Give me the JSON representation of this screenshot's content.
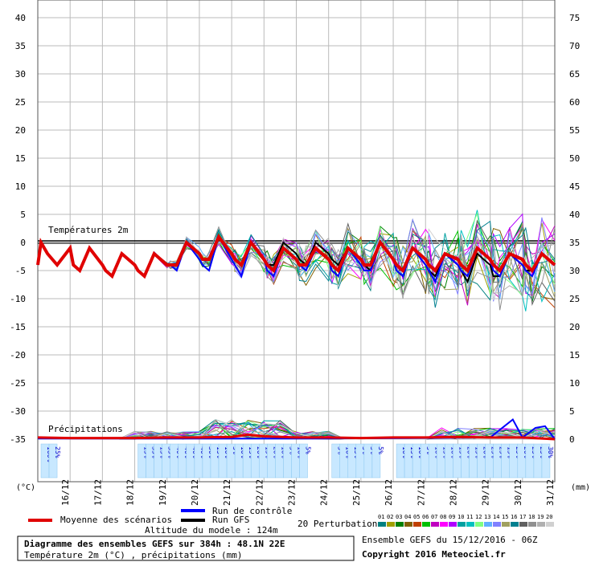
{
  "chart_data": {
    "type": "line",
    "title": "Diagramme des ensembles GEFS sur 384h : 48.1N 22E",
    "subtitle": "Température 2m (°C) , précipitations (mm)",
    "altitude": "Altitude du modele : 124m",
    "run_info": "Ensemble GEFS du 15/12/2016 - 06Z",
    "copyright": "Copyright 2016 Meteociel.fr",
    "left_unit": "(°C)",
    "right_unit": "(mm)",
    "temp_section_label": "Températures 2m",
    "precip_section_label": "Précipitations",
    "x_labels": [
      "16/12",
      "17/12",
      "18/12",
      "19/12",
      "20/12",
      "21/12",
      "22/12",
      "23/12",
      "24/12",
      "25/12",
      "26/12",
      "27/12",
      "28/12",
      "29/12",
      "30/12",
      "31/12"
    ],
    "left_ticks": [
      40,
      35,
      30,
      25,
      20,
      15,
      10,
      5,
      0,
      -5,
      -10,
      -15,
      -20,
      -25,
      -30,
      -35
    ],
    "right_ticks": [
      75,
      70,
      65,
      60,
      55,
      50,
      45,
      40,
      35,
      30,
      25,
      20,
      15,
      10,
      5,
      0
    ],
    "ylim_temp": [
      -35,
      40
    ],
    "temp_time": [
      0,
      0.1,
      0.3,
      0.6,
      1,
      1.1,
      1.3,
      1.6,
      2,
      2.1,
      2.3,
      2.6,
      3,
      3.1,
      3.3,
      3.6,
      4,
      4.1,
      4.3,
      4.6,
      5,
      5.1,
      5.3,
      5.6,
      6,
      6.1,
      6.3,
      6.6,
      7,
      7.1,
      7.3,
      7.6,
      8,
      8.1,
      8.3,
      8.6,
      9,
      9.1,
      9.3,
      9.6,
      10,
      10.1,
      10.3,
      10.6,
      11,
      11.1,
      11.3,
      11.6,
      12,
      12.1,
      12.3,
      12.6,
      13,
      13.1,
      13.3,
      13.6,
      14,
      14.1,
      14.3,
      14.6,
      15,
      15.1,
      15.3,
      15.6,
      16
    ],
    "series": [
      {
        "name": "Moyenne des scénarios",
        "color": "#e00000",
        "width": 4,
        "values": [
          -4,
          0,
          -2,
          -4,
          -1,
          -4,
          -5,
          -1,
          -4,
          -5,
          -6,
          -2,
          -4,
          -5,
          -6,
          -2,
          -4,
          -4,
          -4,
          0,
          -2,
          -3,
          -3,
          1,
          -2,
          -3,
          -4,
          0,
          -3,
          -4,
          -5,
          -1,
          -3,
          -4,
          -4,
          -1,
          -3,
          -4,
          -5,
          -1,
          -3,
          -4,
          -4,
          0,
          -3,
          -4,
          -5,
          -1,
          -3,
          -4,
          -5,
          -2,
          -3,
          -4,
          -5,
          -1,
          -3,
          -4,
          -5,
          -2,
          -3,
          -4,
          -5,
          -2,
          -4
        ]
      },
      {
        "name": "Run de contrôle",
        "color": "#0000ff",
        "width": 2,
        "values": [
          -4,
          0,
          -2,
          -4,
          -1,
          -4,
          -5,
          -1,
          -4,
          -5,
          -6,
          -2,
          -4,
          -5,
          -6,
          -2,
          -4,
          -4,
          -5,
          0,
          -3,
          -4,
          -5,
          1,
          -3,
          -4,
          -6,
          0,
          -3,
          -5,
          -6,
          -1,
          -3,
          -4,
          -5,
          -1,
          -3,
          -5,
          -6,
          -1,
          -4,
          -5,
          -5,
          0,
          -3,
          -5,
          -6,
          -1,
          -4,
          -5,
          -7,
          -2,
          -4,
          -5,
          -6,
          -1,
          -3,
          -5,
          -6,
          -2,
          -4,
          -5,
          -6,
          -2,
          -4
        ]
      },
      {
        "name": "Run GFS",
        "color": "#000000",
        "width": 2,
        "values": [
          -4,
          0,
          -2,
          -4,
          -1,
          -4,
          -5,
          -1,
          -4,
          -5,
          -6,
          -2,
          -4,
          -5,
          -6,
          -2,
          -4,
          -4,
          -4,
          0,
          -2,
          -3,
          -3,
          1,
          -2,
          -3,
          -4,
          0,
          -3,
          -4,
          -4,
          0,
          -2,
          -3,
          -4,
          0,
          -2,
          -3,
          -4,
          -1,
          -3,
          -4,
          -5,
          0,
          -3,
          -4,
          -5,
          -1,
          -4,
          -5,
          -6,
          -2,
          -4,
          -5,
          -7,
          -2,
          -4,
          -6,
          -6,
          -2,
          -4,
          -5,
          -5,
          -2,
          -4
        ]
      }
    ],
    "perturbations_label": "20 Perturbations",
    "perturbations": [
      {
        "id": "01",
        "color": "#008080"
      },
      {
        "id": "02",
        "color": "#a0a000"
      },
      {
        "id": "03",
        "color": "#008000"
      },
      {
        "id": "04",
        "color": "#806000"
      },
      {
        "id": "05",
        "color": "#c04000"
      },
      {
        "id": "06",
        "color": "#00c000"
      },
      {
        "id": "07",
        "color": "#c000c0"
      },
      {
        "id": "08",
        "color": "#ff00ff"
      },
      {
        "id": "09",
        "color": "#b000ff"
      },
      {
        "id": "10",
        "color": "#00a0a0"
      },
      {
        "id": "11",
        "color": "#00c0c0"
      },
      {
        "id": "12",
        "color": "#80ff80"
      },
      {
        "id": "13",
        "color": "#60b0ff"
      },
      {
        "id": "14",
        "color": "#8080ff"
      },
      {
        "id": "15",
        "color": "#a0a060"
      },
      {
        "id": "16",
        "color": "#008090"
      },
      {
        "id": "17",
        "color": "#606060"
      },
      {
        "id": "18",
        "color": "#909090"
      },
      {
        "id": "19",
        "color": "#b0b0b0"
      },
      {
        "id": "20",
        "color": "#d0d0d0"
      }
    ],
    "precip_mean": [
      [
        0,
        0.3
      ],
      [
        1,
        0.2
      ],
      [
        2,
        0.2
      ],
      [
        3,
        0.2
      ],
      [
        4,
        0.3
      ],
      [
        5,
        0.3
      ],
      [
        6,
        0.4
      ],
      [
        6.5,
        0.8
      ],
      [
        7,
        0.5
      ],
      [
        8,
        0.3
      ],
      [
        9,
        0.3
      ],
      [
        10,
        0.2
      ],
      [
        11,
        0.3
      ],
      [
        12,
        0.3
      ],
      [
        13,
        0.4
      ],
      [
        14,
        0.3
      ],
      [
        15,
        0.3
      ],
      [
        16,
        0
      ]
    ],
    "precip_control": [
      [
        0,
        0.1
      ],
      [
        4,
        0.1
      ],
      [
        8,
        0.1
      ],
      [
        12,
        0.2
      ],
      [
        14,
        0.3
      ],
      [
        14.7,
        3.5
      ],
      [
        15,
        0.3
      ],
      [
        15.4,
        2
      ],
      [
        15.7,
        2.3
      ],
      [
        16,
        0
      ]
    ],
    "precip_prob": [
      {
        "day": 0,
        "values": [
          "100%",
          "25%"
        ]
      },
      {
        "day": 3,
        "values": [
          "15%",
          "35%",
          "15%",
          "35%",
          "40%",
          "40%",
          "40%",
          "40%"
        ]
      },
      {
        "day": 5,
        "values": [
          "30%",
          "15%",
          "10%",
          "5%",
          "10%",
          "15%",
          "20%",
          "15%",
          "20%",
          "10%",
          "5%",
          "10%",
          "5%"
        ]
      },
      {
        "day": 9,
        "values": [
          "5%",
          "10%",
          "15%",
          "5%",
          "5%",
          "5%"
        ]
      },
      {
        "day": 11,
        "values": [
          "10%",
          "15%",
          "10%",
          "5%",
          "10%",
          "15%",
          "10%",
          "15%",
          "20%",
          "15%",
          "20%",
          "25%",
          "25%",
          "15%",
          "25%",
          "20%",
          "25%",
          "25%",
          "30%"
        ]
      }
    ]
  }
}
